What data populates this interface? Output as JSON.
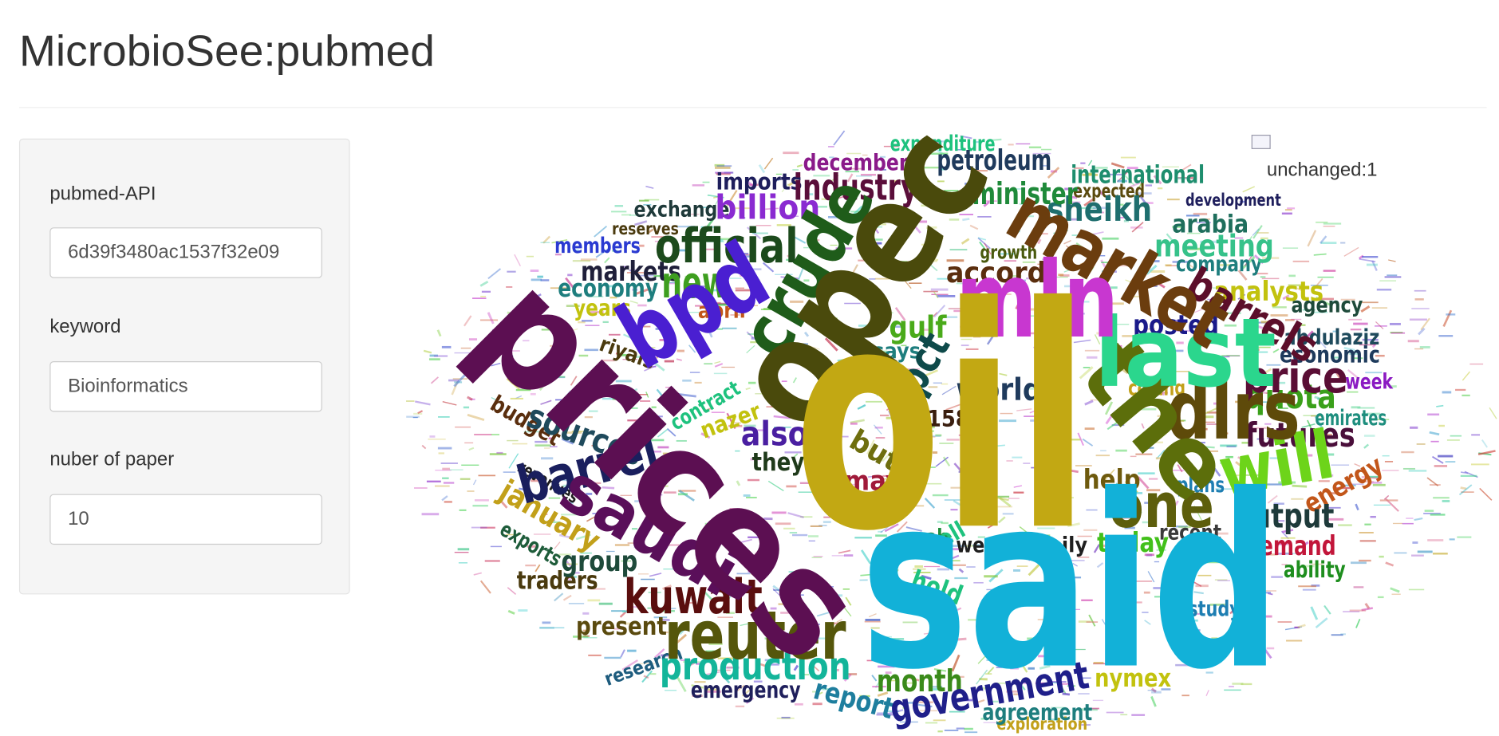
{
  "header": {
    "title": "MicrobioSee:pubmed"
  },
  "sidebar": {
    "inputs": [
      {
        "label": "pubmed-API",
        "value": "6d39f3480ac1537f32e09"
      },
      {
        "label": "keyword",
        "value": "Bioinformatics"
      },
      {
        "label": "nuber of paper",
        "value": "10"
      }
    ]
  },
  "wordcloud": {
    "status": "unchanged:1",
    "words": [
      "oil",
      "said",
      "prices",
      "opec",
      "mln",
      "market",
      "crude",
      "bpd",
      "last",
      "the",
      "dlrs",
      "will",
      "one",
      "price",
      "barrels",
      "reuter",
      "saudi",
      "barrel",
      "kuwait",
      "production",
      "official",
      "new",
      "industry",
      "petroleum",
      "minister",
      "sheikh",
      "international",
      "meeting",
      "government",
      "month",
      "world",
      "pct",
      "gulf",
      "accord",
      "posted",
      "analysts",
      "quota",
      "futures",
      "output",
      "demand",
      "today",
      "recent",
      "energy",
      "economic",
      "sources",
      "economy",
      "markets",
      "years",
      "group",
      "january",
      "traders",
      "present",
      "emergency",
      "report",
      "december",
      "billion",
      "imports",
      "exchange",
      "also",
      "they",
      "but",
      "may",
      "158",
      "nymex",
      "agreement",
      "abdulaziz",
      "agency",
      "expenditure",
      "arabia",
      "members",
      "reserves",
      "help",
      "hold",
      "sell",
      "ability",
      "exploration",
      "budget",
      "riyals",
      "april",
      "contract",
      "nazer",
      "week",
      "emirates",
      "ceiling",
      "plans",
      "study",
      "west",
      "daily",
      "arab",
      "growth",
      "company",
      "development",
      "expected",
      "says",
      "research",
      "exports",
      "revenues"
    ]
  }
}
